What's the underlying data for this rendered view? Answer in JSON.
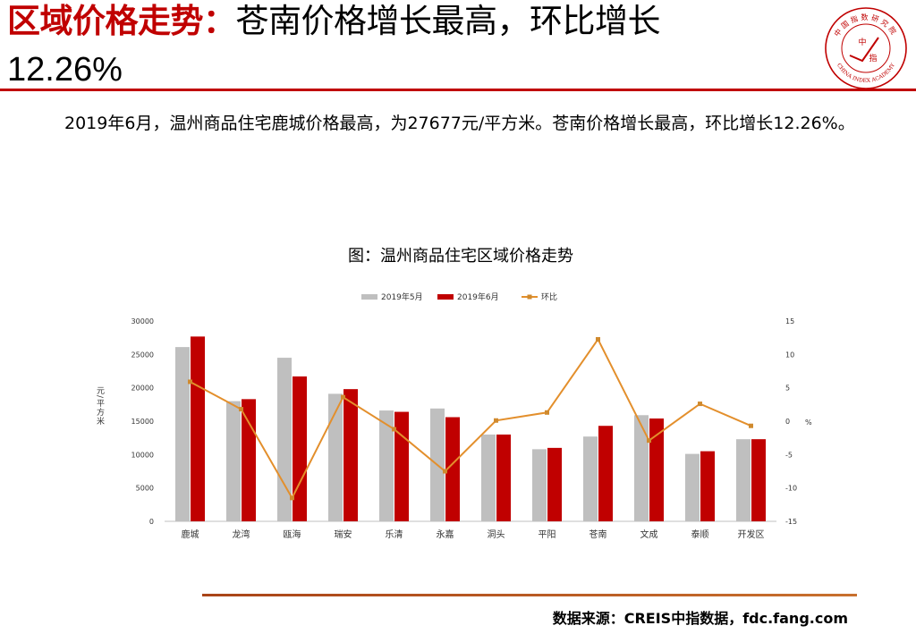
{
  "slide": {
    "title_accent": "区域价格走势：",
    "title_rest": "苍南价格增长最高，环比增长",
    "title_line2": "12.26%",
    "paragraph": "2019年6月，温州商品住宅鹿城价格最高，为27677元/平方米。苍南价格增长最高，环比增长12.26%。",
    "source": "数据来源：CREIS中指数据，fdc.fang.com",
    "accent_color": "#c00000"
  },
  "logo": {
    "top_text": "中国指数研究院",
    "bottom_text": "CHINA INDEX ACADEMY",
    "center_char_1": "中",
    "center_char_2": "指"
  },
  "chart_data": {
    "type": "bar",
    "title": "图：温州商品住宅区域价格走势",
    "categories": [
      "鹿城",
      "龙湾",
      "瓯海",
      "瑞安",
      "乐清",
      "永嘉",
      "洞头",
      "平阳",
      "苍南",
      "文成",
      "泰顺",
      "开发区"
    ],
    "series": [
      {
        "name": "2019年5月",
        "type": "bar",
        "axis": "left",
        "color": "#bfbfbf",
        "values": [
          26100,
          18000,
          24500,
          19100,
          16600,
          16900,
          13000,
          10800,
          12700,
          15900,
          10100,
          12300
        ]
      },
      {
        "name": "2019年6月",
        "type": "bar",
        "axis": "left",
        "color": "#c00000",
        "values": [
          27677,
          18300,
          21700,
          19800,
          16400,
          15600,
          13000,
          11000,
          14300,
          15400,
          10500,
          12300
        ]
      },
      {
        "name": "环比",
        "type": "line",
        "axis": "right",
        "color": "#e38f2c",
        "values": [
          5.9,
          1.8,
          -11.5,
          3.6,
          -1.2,
          -7.5,
          0.1,
          1.3,
          12.26,
          -2.9,
          2.6,
          -0.7
        ]
      }
    ],
    "ylabel": "元/平方米",
    "y2label": "%",
    "ylim": [
      0,
      30000
    ],
    "yticks": [
      0,
      5000,
      10000,
      15000,
      20000,
      25000,
      30000
    ],
    "y2lim": [
      -15,
      15
    ],
    "y2ticks": [
      -15,
      -10,
      -5,
      0,
      5,
      10,
      15
    ],
    "legend_position": "top",
    "grid": false
  }
}
